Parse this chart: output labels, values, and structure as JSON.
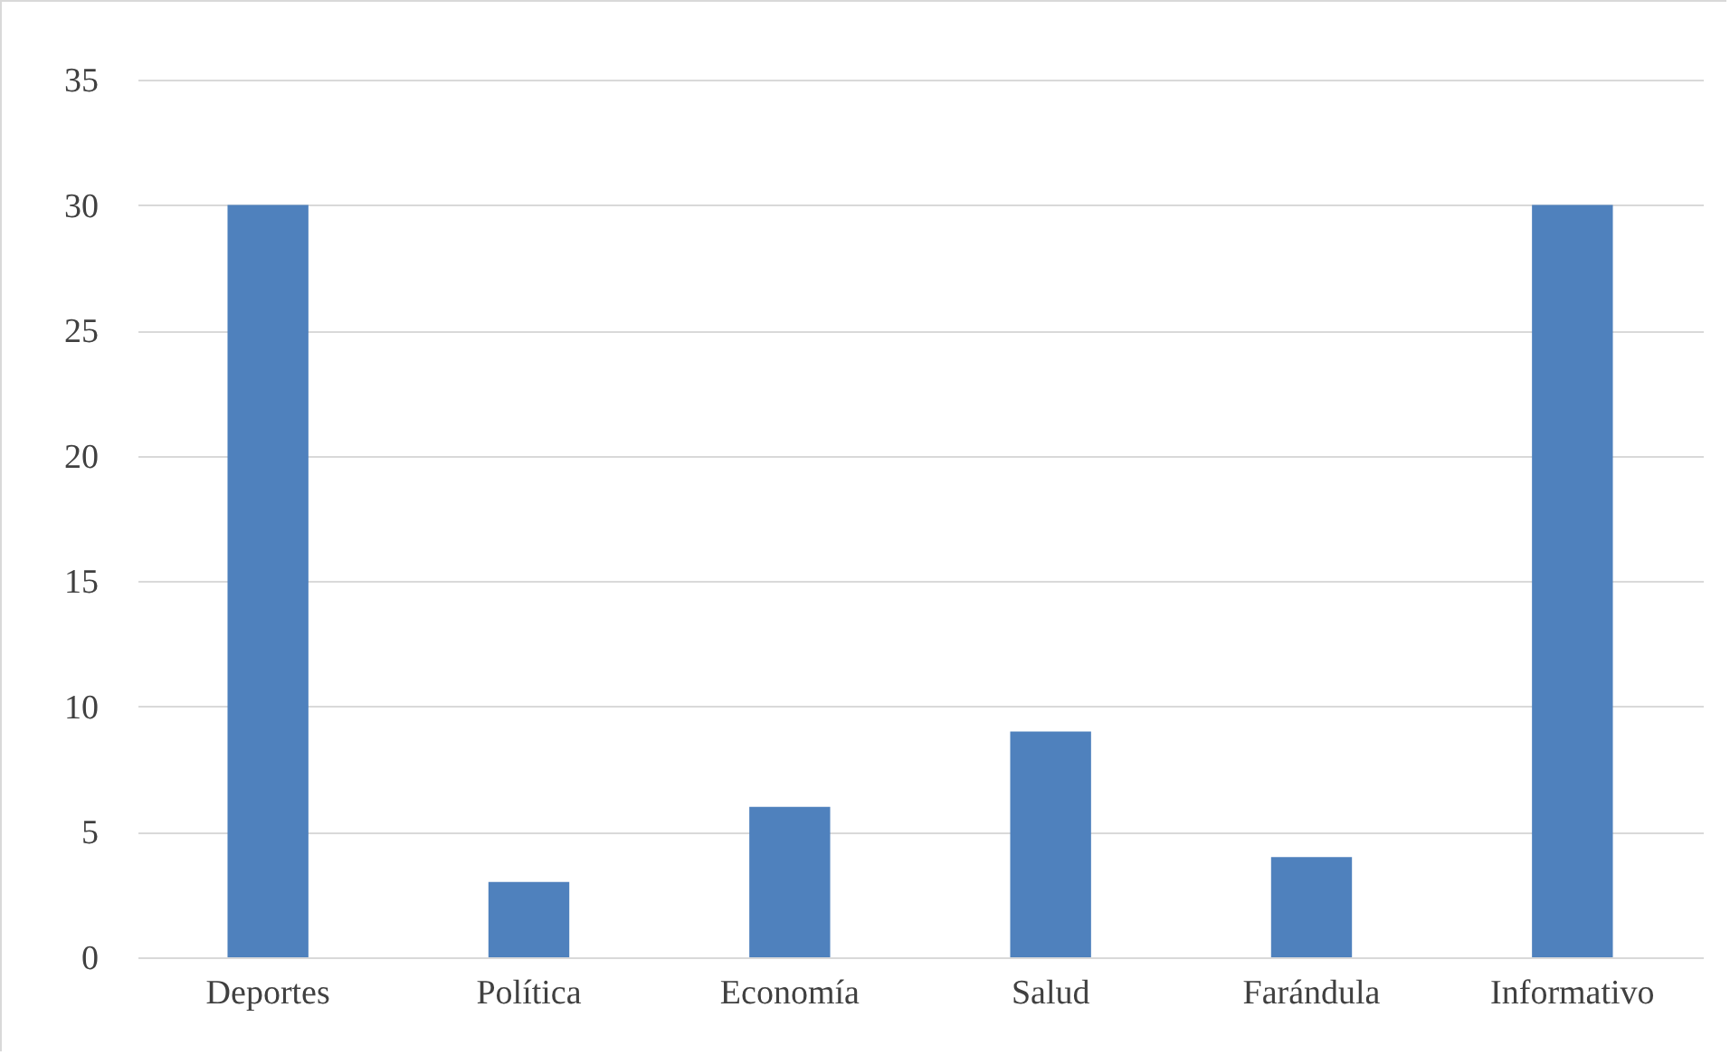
{
  "chart_data": {
    "type": "bar",
    "categories": [
      "Deportes",
      "Política",
      "Economía",
      "Salud",
      "Farándula",
      "Informativo"
    ],
    "values": [
      30,
      3,
      6,
      9,
      4,
      30
    ],
    "color": "#4f81bd",
    "ylim": [
      0,
      35
    ],
    "yticks": [
      0,
      5,
      10,
      15,
      20,
      25,
      30,
      35
    ],
    "grid": "y"
  }
}
